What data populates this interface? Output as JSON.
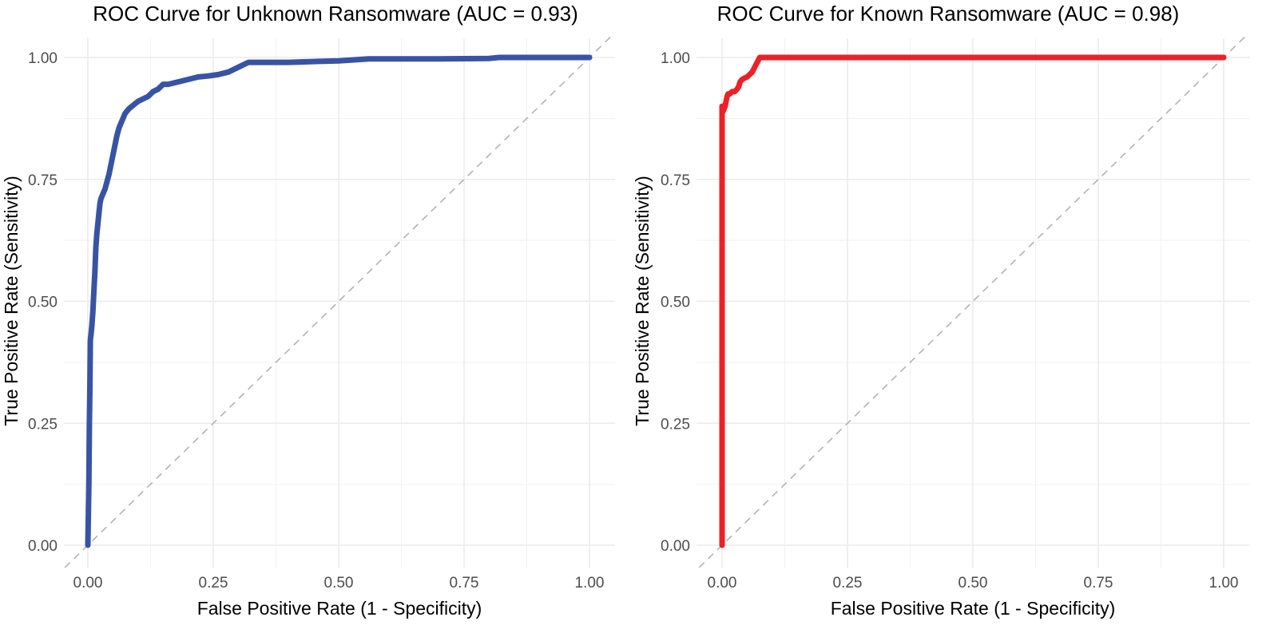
{
  "chart_data": [
    {
      "type": "line",
      "title": "ROC Curve for Unknown Ransomware (AUC = 0.93)",
      "xlabel": "False Positive Rate (1 - Specificity)",
      "ylabel": "True Positive Rate (Sensitivity)",
      "xlim": [
        0,
        1
      ],
      "ylim": [
        0,
        1
      ],
      "xticks": [
        "0.00",
        "0.25",
        "0.50",
        "0.75",
        "1.00"
      ],
      "yticks": [
        "0.00",
        "0.25",
        "0.50",
        "0.75",
        "1.00"
      ],
      "grid": true,
      "reference_line": "diagonal",
      "color": "#3953a4",
      "series": [
        {
          "name": "Unknown Ransomware",
          "x": [
            0.0,
            0.002,
            0.003,
            0.004,
            0.005,
            0.006,
            0.008,
            0.01,
            0.012,
            0.014,
            0.016,
            0.018,
            0.02,
            0.022,
            0.024,
            0.026,
            0.03,
            0.034,
            0.038,
            0.042,
            0.046,
            0.05,
            0.054,
            0.058,
            0.062,
            0.066,
            0.07,
            0.074,
            0.078,
            0.082,
            0.088,
            0.094,
            0.1,
            0.11,
            0.12,
            0.13,
            0.14,
            0.15,
            0.16,
            0.18,
            0.2,
            0.22,
            0.24,
            0.26,
            0.28,
            0.3,
            0.32,
            0.34,
            0.4,
            0.46,
            0.5,
            0.56,
            0.6,
            0.7,
            0.8,
            0.82,
            0.9,
            1.0
          ],
          "y": [
            0.0,
            0.13,
            0.25,
            0.32,
            0.42,
            0.43,
            0.45,
            0.48,
            0.52,
            0.56,
            0.61,
            0.64,
            0.66,
            0.68,
            0.7,
            0.71,
            0.72,
            0.73,
            0.745,
            0.76,
            0.78,
            0.8,
            0.82,
            0.84,
            0.855,
            0.865,
            0.875,
            0.885,
            0.89,
            0.895,
            0.9,
            0.905,
            0.91,
            0.915,
            0.92,
            0.93,
            0.935,
            0.945,
            0.945,
            0.95,
            0.955,
            0.96,
            0.962,
            0.965,
            0.97,
            0.98,
            0.99,
            0.99,
            0.99,
            0.992,
            0.993,
            0.997,
            0.997,
            0.997,
            0.998,
            1.0,
            1.0,
            1.0
          ]
        }
      ]
    },
    {
      "type": "line",
      "title": "ROC Curve for Known Ransomware (AUC = 0.98)",
      "xlabel": "False Positive Rate (1 - Specificity)",
      "ylabel": "True Positive Rate (Sensitivity)",
      "xlim": [
        0,
        1
      ],
      "ylim": [
        0,
        1
      ],
      "xticks": [
        "0.00",
        "0.25",
        "0.50",
        "0.75",
        "1.00"
      ],
      "yticks": [
        "0.00",
        "0.25",
        "0.50",
        "0.75",
        "1.00"
      ],
      "grid": true,
      "reference_line": "diagonal",
      "color": "#ec2127",
      "series": [
        {
          "name": "Known Ransomware",
          "x": [
            0.0,
            0.0,
            0.002,
            0.004,
            0.006,
            0.008,
            0.01,
            0.012,
            0.015,
            0.018,
            0.02,
            0.025,
            0.03,
            0.033,
            0.036,
            0.04,
            0.045,
            0.05,
            0.055,
            0.06,
            0.065,
            0.07,
            0.075,
            0.08,
            0.2,
            0.5,
            1.0
          ],
          "y": [
            0.0,
            0.9,
            0.89,
            0.895,
            0.9,
            0.91,
            0.92,
            0.925,
            0.925,
            0.928,
            0.93,
            0.93,
            0.935,
            0.94,
            0.95,
            0.955,
            0.958,
            0.96,
            0.965,
            0.97,
            0.98,
            0.99,
            1.0,
            1.0,
            1.0,
            1.0,
            1.0
          ]
        }
      ]
    }
  ]
}
